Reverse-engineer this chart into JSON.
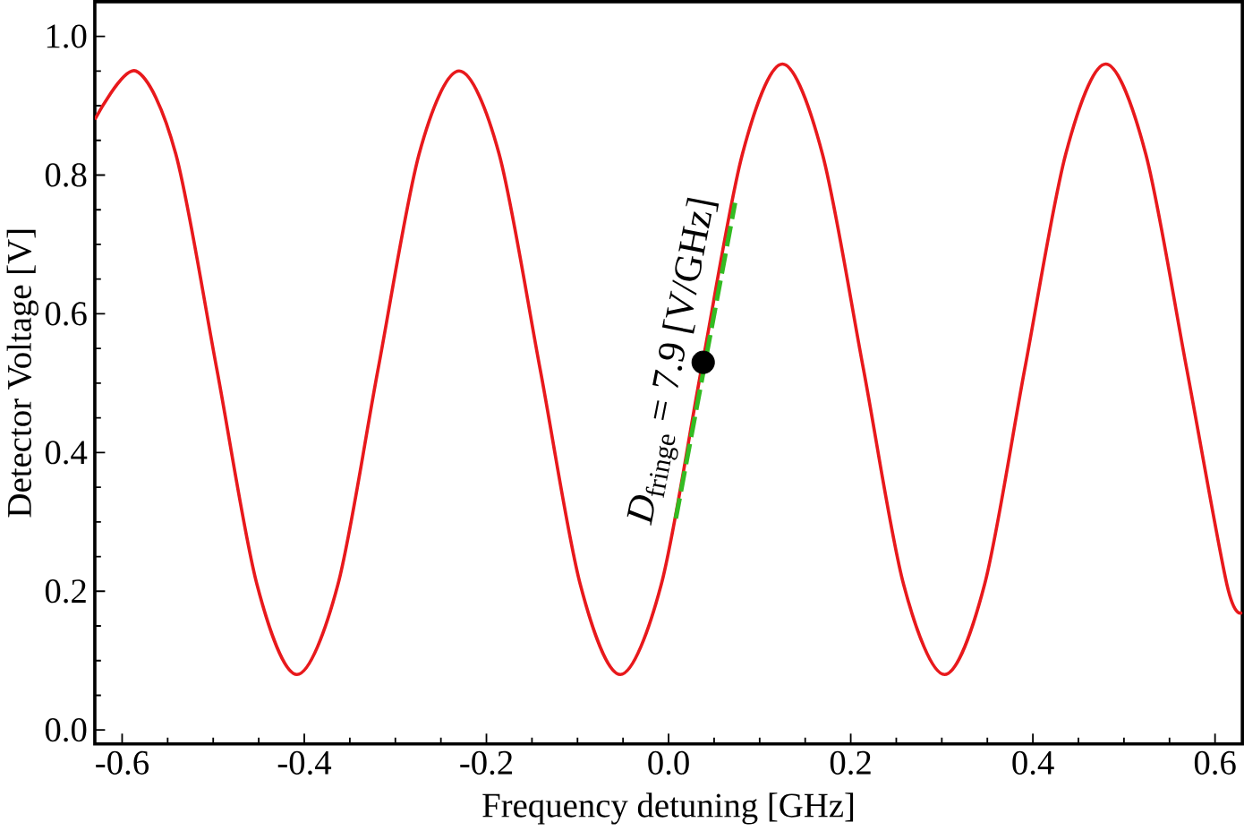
{
  "chart_data": {
    "type": "line",
    "xlabel": "Frequency  detuning [GHz]",
    "ylabel": "Detector Voltage [V]",
    "xlim": [
      -0.63,
      0.63
    ],
    "ylim": [
      -0.02,
      1.05
    ],
    "xticks": [
      {
        "value": -0.6,
        "label": "-0.6"
      },
      {
        "value": -0.4,
        "label": "-0.4"
      },
      {
        "value": -0.2,
        "label": "-0.2"
      },
      {
        "value": 0,
        "label": "0.0"
      },
      {
        "value": 0.2,
        "label": "0.2"
      },
      {
        "value": 0.4,
        "label": "0.4"
      },
      {
        "value": 0.6,
        "label": "0.6"
      }
    ],
    "yticks": [
      {
        "value": 0,
        "label": "0.0"
      },
      {
        "value": 0.2,
        "label": "0.2"
      },
      {
        "value": 0.4,
        "label": "0.4"
      },
      {
        "value": 0.6,
        "label": "0.6"
      },
      {
        "value": 0.8,
        "label": "0.8"
      },
      {
        "value": 1,
        "label": "1.0"
      }
    ],
    "grid": false,
    "series": [
      {
        "color": "#e8191c",
        "line_style": "solid",
        "marker": "none",
        "x": [
          -0.63,
          -0.585,
          -0.541,
          -0.496,
          -0.452,
          -0.408,
          -0.363,
          -0.319,
          -0.274,
          -0.23,
          -0.186,
          -0.141,
          -0.097,
          -0.053,
          -0.008,
          0.036,
          0.081,
          0.125,
          0.169,
          0.214,
          0.258,
          0.303,
          0.347,
          0.391,
          0.436,
          0.48,
          0.524,
          0.569,
          0.613,
          0.63
        ],
        "values": [
          0.88,
          0.95,
          0.83,
          0.52,
          0.21,
          0.08,
          0.21,
          0.52,
          0.83,
          0.95,
          0.83,
          0.52,
          0.21,
          0.08,
          0.21,
          0.52,
          0.83,
          0.96,
          0.83,
          0.52,
          0.21,
          0.08,
          0.21,
          0.52,
          0.83,
          0.96,
          0.83,
          0.52,
          0.21,
          0.17
        ]
      },
      {
        "type": "line",
        "color": "#33bb22",
        "line_style": "dashed",
        "marker": "none",
        "x": [
          0.008,
          0.073
        ],
        "values": [
          0.305,
          0.76
        ]
      },
      {
        "type": "scatter",
        "color": "#000000",
        "marker": "circle",
        "x": [
          0.038
        ],
        "values": [
          0.53
        ]
      }
    ],
    "annotations": [
      {
        "text": "*D*$_{fringe}$ = 7.9 [V/GHz]",
        "x": 0.038,
        "y": 0.53
      }
    ]
  }
}
